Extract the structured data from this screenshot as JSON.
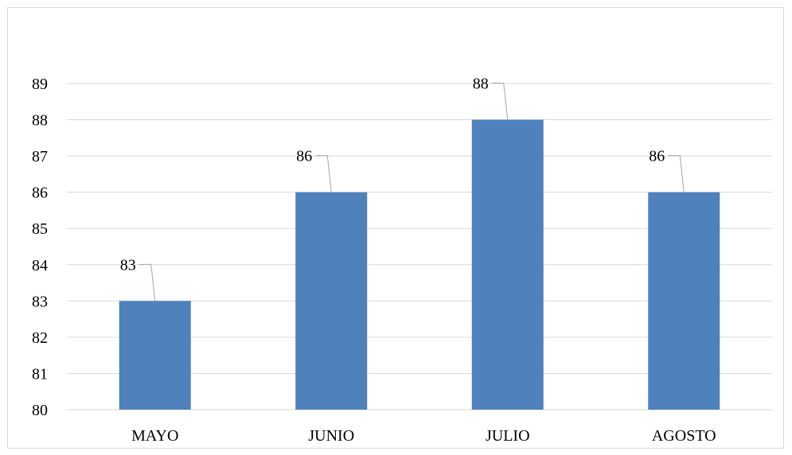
{
  "chart_data": {
    "type": "bar",
    "categories": [
      "MAYO",
      "JUNIO",
      "JULIO",
      "AGOSTO"
    ],
    "values": [
      83,
      86,
      88,
      86
    ],
    "data_labels": [
      "83",
      "86",
      "88",
      "86"
    ],
    "ylim": [
      80,
      89
    ],
    "yticks": [
      "80",
      "81",
      "82",
      "83",
      "84",
      "85",
      "86",
      "87",
      "88",
      "89"
    ],
    "grid": true,
    "legend": "none",
    "bar_color": "#4f81bd",
    "grid_color": "#d9d9d9",
    "leader_color": "#a6a6a6"
  }
}
